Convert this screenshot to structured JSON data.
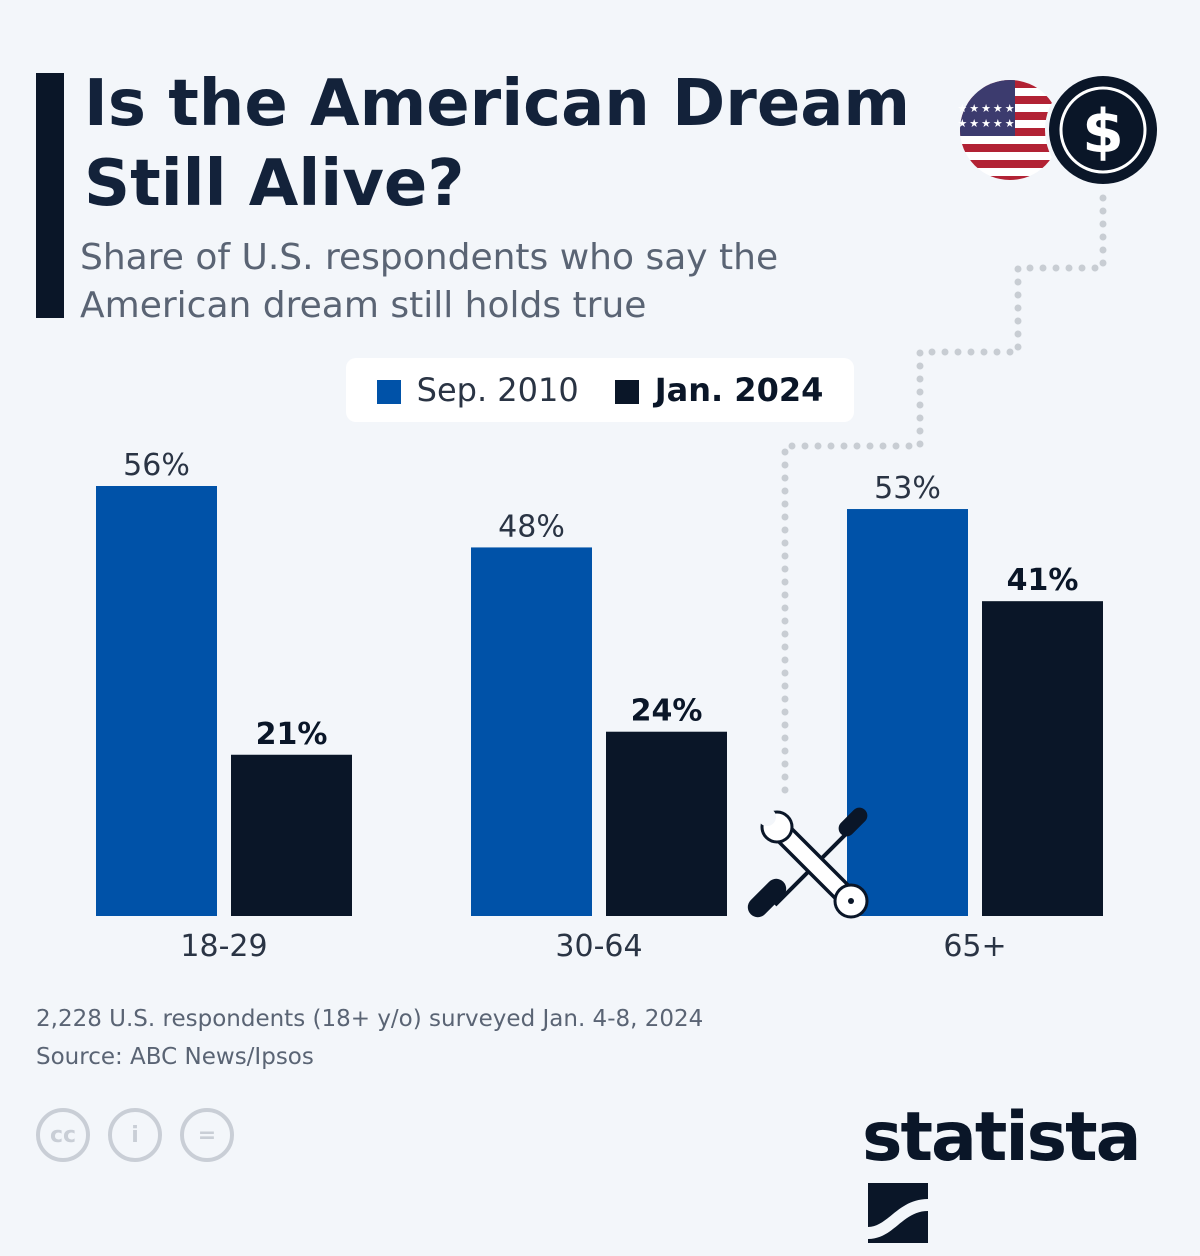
{
  "title": "Is the American Dream Still Alive?",
  "subtitle": "Share of U.S. respondents who say the American dream still holds true",
  "colors": {
    "sep2010": "#0052a8",
    "jan2024": "#0a1628"
  },
  "chart_data": {
    "type": "bar",
    "categories": [
      "18-29",
      "30-64",
      "65+"
    ],
    "series": [
      {
        "name": "Sep. 2010",
        "values": [
          56,
          48,
          53
        ],
        "labels": [
          "56%",
          "48%",
          "53%"
        ]
      },
      {
        "name": "Jan. 2024",
        "values": [
          21,
          24,
          41
        ],
        "labels": [
          "21%",
          "24%",
          "41%"
        ]
      }
    ],
    "ylim": [
      0,
      56
    ],
    "grid": false,
    "legend": "top-center"
  },
  "footer": {
    "note": "2,228 U.S. respondents (18+ y/o) surveyed Jan. 4-8, 2024",
    "source": "Source: ABC News/Ipsos"
  },
  "license_icons": [
    "cc-icon",
    "attribution-icon",
    "no-derivatives-icon"
  ],
  "brand": "statista"
}
